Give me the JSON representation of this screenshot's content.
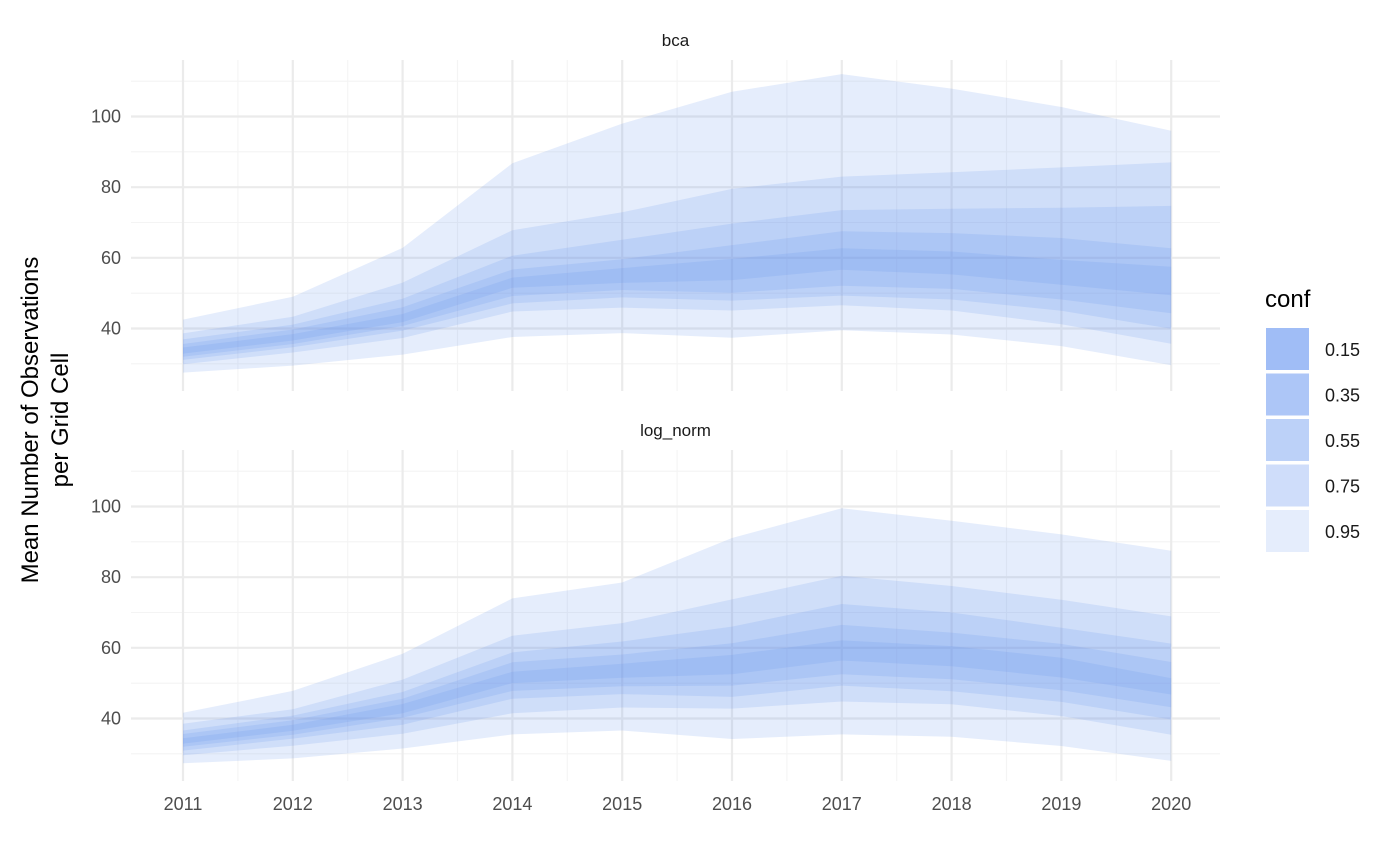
{
  "chart_data": {
    "type": "area",
    "ylabel_lines": [
      "Mean Number of Observations",
      "per Grid Cell"
    ],
    "xlabel": "",
    "x": [
      2011,
      2012,
      2013,
      2014,
      2015,
      2016,
      2017,
      2018,
      2019,
      2020
    ],
    "x_ticks": [
      "2011",
      "2012",
      "2013",
      "2014",
      "2015",
      "2016",
      "2017",
      "2018",
      "2019",
      "2020"
    ],
    "y_ticks": [
      40,
      60,
      80,
      100
    ],
    "y_tick_labels": [
      "40",
      "60",
      "80",
      "100"
    ],
    "ylim": [
      22.3,
      116
    ],
    "grid": true,
    "band_color": "#5b8def",
    "legend": {
      "title": "conf",
      "position": "right",
      "entries": [
        "0.15",
        "0.35",
        "0.55",
        "0.75",
        "0.95"
      ]
    },
    "panels": [
      {
        "title": "bca",
        "bands": [
          {
            "conf": "0.15",
            "lower": [
              32.9,
              36.6,
              41.8,
              51.5,
              52.9,
              53.7,
              56.6,
              55.3,
              52.4,
              49.4
            ],
            "upper": [
              34.6,
              38.4,
              44.1,
              54.4,
              57.1,
              59.7,
              62.7,
              61.8,
              59.4,
              57.5
            ]
          },
          {
            "conf": "0.35",
            "lower": [
              32.0,
              35.6,
              40.7,
              49.2,
              50.9,
              50.1,
              52.1,
              51.2,
              48.2,
              44.3
            ],
            "upper": [
              35.6,
              39.7,
              46.0,
              56.7,
              59.6,
              63.6,
              67.5,
              67.0,
              65.6,
              62.7
            ]
          },
          {
            "conf": "0.55",
            "lower": [
              31.1,
              34.7,
              39.4,
              47.1,
              48.8,
              47.9,
              49.3,
              48.2,
              45.0,
              39.9
            ],
            "upper": [
              36.9,
              41.1,
              48.4,
              60.6,
              65.1,
              69.7,
              73.5,
              73.9,
              74.2,
              74.7
            ]
          },
          {
            "conf": "0.75",
            "lower": [
              29.9,
              33.2,
              37.3,
              44.8,
              45.9,
              45.1,
              46.6,
              45.1,
              41.2,
              35.7
            ],
            "upper": [
              38.6,
              43.3,
              53.0,
              67.8,
              72.9,
              79.5,
              83.0,
              84.2,
              85.6,
              87.0
            ]
          },
          {
            "conf": "0.95",
            "lower": [
              27.5,
              29.5,
              32.6,
              37.6,
              38.7,
              37.4,
              39.5,
              38.3,
              35.0,
              29.6
            ],
            "upper": [
              42.5,
              49.0,
              62.8,
              86.8,
              98.0,
              107.0,
              112.0,
              107.9,
              102.7,
              96.0
            ]
          }
        ]
      },
      {
        "title": "log_norm",
        "bands": [
          {
            "conf": "0.15",
            "lower": [
              32.9,
              36.5,
              41.5,
              50.0,
              51.5,
              52.5,
              56.4,
              54.8,
              51.6,
              46.8
            ],
            "upper": [
              34.4,
              38.2,
              44.1,
              53.2,
              55.5,
              58.0,
              62.1,
              60.5,
              57.2,
              51.4
            ]
          },
          {
            "conf": "0.35",
            "lower": [
              32.0,
              35.4,
              40.2,
              47.8,
              49.1,
              49.3,
              52.5,
              51.1,
              48.0,
              43.2
            ],
            "upper": [
              35.6,
              39.5,
              45.6,
              55.9,
              58.1,
              61.3,
              66.5,
              64.3,
              61.1,
              56.0
            ]
          },
          {
            "conf": "0.55",
            "lower": [
              30.9,
              34.3,
              38.2,
              45.6,
              46.9,
              46.1,
              49.3,
              47.7,
              44.7,
              39.7
            ],
            "upper": [
              36.6,
              40.8,
              47.5,
              58.7,
              61.8,
              66.0,
              72.4,
              70.0,
              65.7,
              61.2
            ]
          },
          {
            "conf": "0.75",
            "lower": [
              29.6,
              32.3,
              35.7,
              41.5,
              43.1,
              42.8,
              44.8,
              44.0,
              40.7,
              35.4
            ],
            "upper": [
              38.5,
              42.6,
              51.0,
              63.4,
              67.0,
              73.7,
              80.4,
              77.5,
              73.6,
              68.9
            ]
          },
          {
            "conf": "0.95",
            "lower": [
              27.3,
              28.7,
              31.5,
              35.5,
              36.6,
              34.2,
              35.5,
              34.8,
              32.2,
              28.0
            ],
            "upper": [
              41.6,
              47.8,
              58.3,
              74.0,
              78.5,
              91.1,
              99.5,
              96.0,
              92.1,
              87.5
            ]
          }
        ]
      }
    ]
  }
}
